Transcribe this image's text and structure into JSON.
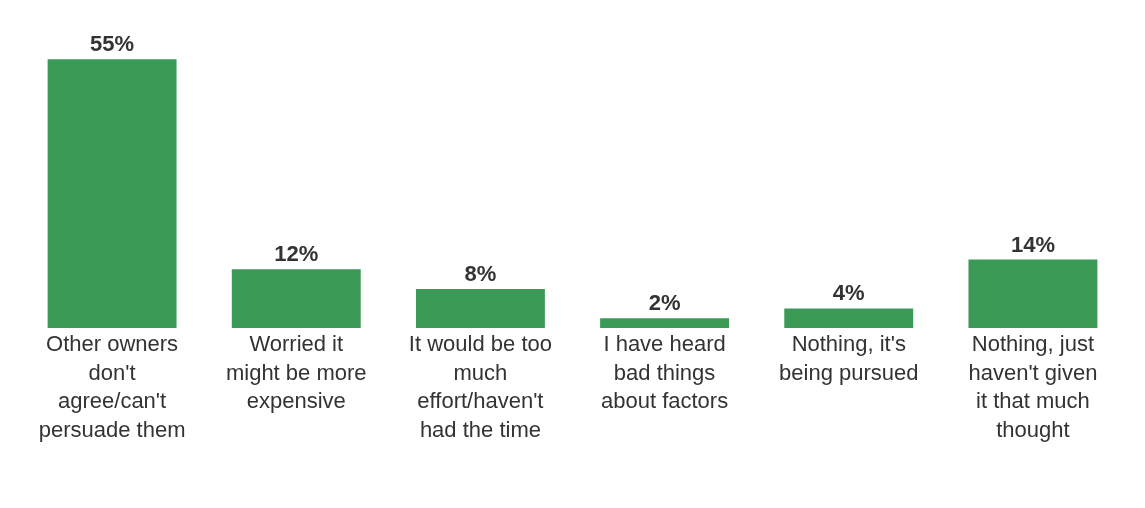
{
  "chart_data": {
    "type": "bar",
    "categories": [
      "Other owners don't agree/can't persuade them",
      "Worried it might be more expensive",
      "It would be too much effort/haven't had the time",
      "I have heard bad things about factors",
      "Nothing, it's being pursued",
      "Nothing, just haven't given it that much thought"
    ],
    "values": [
      55,
      12,
      8,
      2,
      4,
      14
    ],
    "value_labels": [
      "55%",
      "12%",
      "8%",
      "2%",
      "4%",
      "14%"
    ],
    "color": "#3a9a56"
  }
}
